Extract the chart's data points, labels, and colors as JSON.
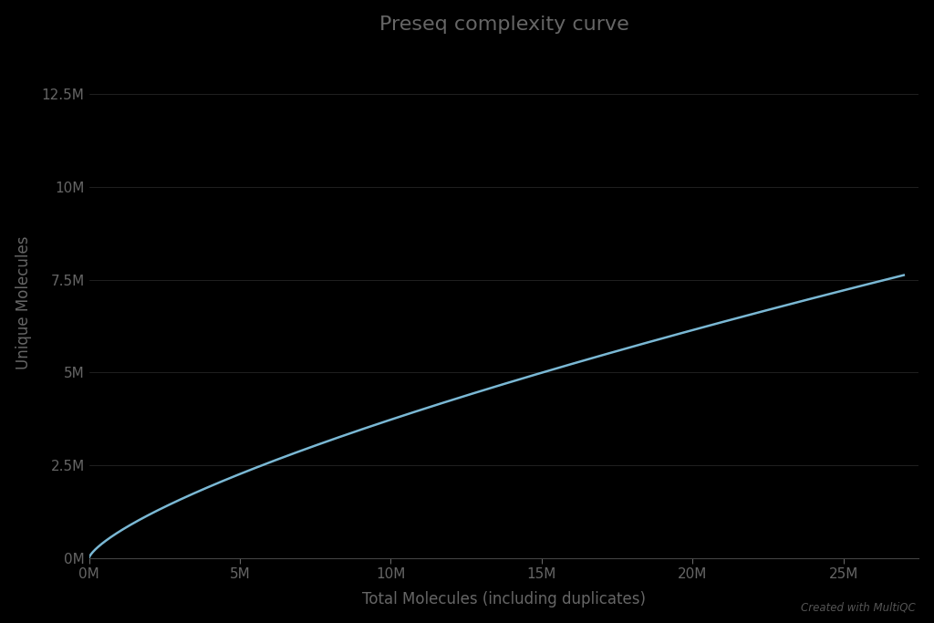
{
  "title": "Preseq complexity curve",
  "xlabel": "Total Molecules (including duplicates)",
  "ylabel": "Unique Molecules",
  "background_color": "#000000",
  "plot_bg_color": "#000000",
  "line_color": "#7ab8d4",
  "grid_color": "#ffffff",
  "grid_alpha": 0.18,
  "title_color": "#666666",
  "tick_label_color": "#666666",
  "axis_label_color": "#666666",
  "watermark": "Created with MultiQC",
  "watermark_color": "#555555",
  "xlim": [
    0,
    27500000
  ],
  "ylim": [
    0,
    13750000
  ],
  "xticks": [
    0,
    5000000,
    10000000,
    15000000,
    20000000,
    25000000
  ],
  "yticks": [
    0,
    2500000,
    5000000,
    7500000,
    10000000,
    12500000
  ],
  "xtick_labels": [
    "0M",
    "5M",
    "10M",
    "15M",
    "20M",
    "25M"
  ],
  "ytick_labels": [
    "0M",
    "2.5M",
    "5M",
    "7.5M",
    "10M",
    "12.5M"
  ],
  "curve_x_max": 27000000,
  "curve_y_end": 7620000,
  "curve_exponent": 0.72
}
